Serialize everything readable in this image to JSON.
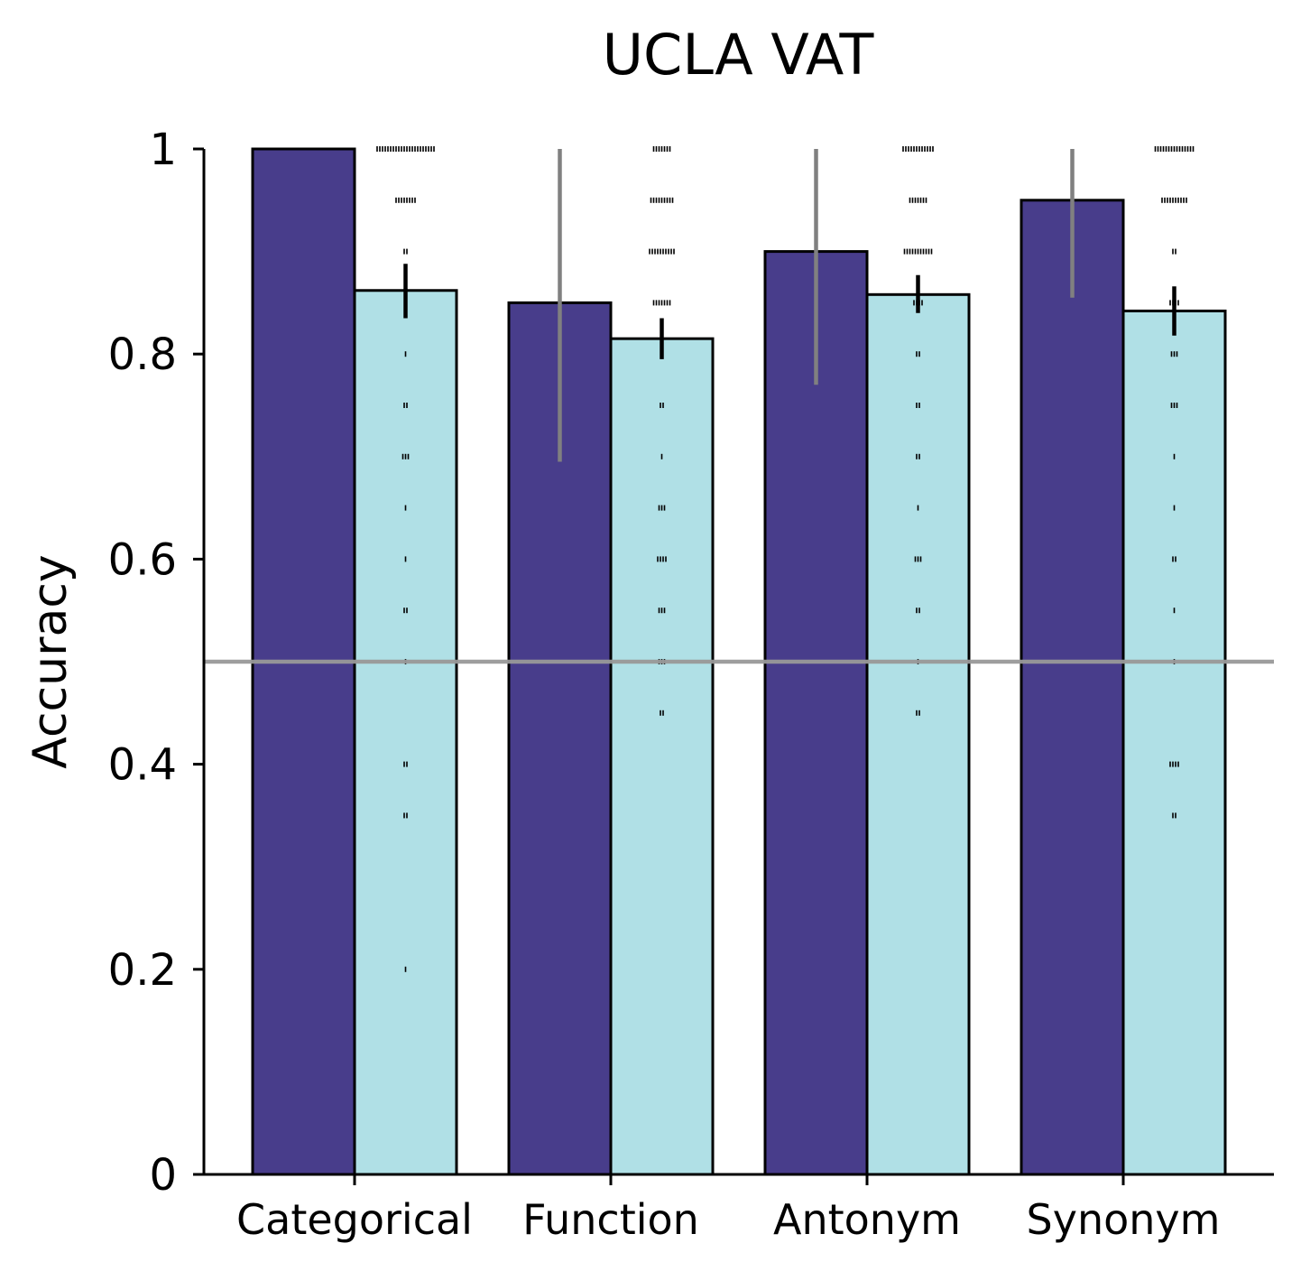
{
  "chart_data": {
    "type": "bar",
    "title": "UCLA VAT",
    "xlabel": "",
    "ylabel": "Accuracy",
    "ylim": [
      0,
      1
    ],
    "yticks": [
      0,
      0.2,
      0.4,
      0.6,
      0.8,
      1
    ],
    "ytick_labels": [
      "0",
      "0.2",
      "0.4",
      "0.6",
      "0.8",
      "1"
    ],
    "categories": [
      "Categorical",
      "Function",
      "Antonym",
      "Synonym"
    ],
    "reference_line": 0.5,
    "reference_line_color": "#999999",
    "grid": false,
    "legend": "none",
    "series": [
      {
        "color": "#483D8B",
        "values": [
          1.0,
          0.85,
          0.9,
          0.95
        ],
        "error_low": [
          1.0,
          0.695,
          0.77,
          0.855
        ],
        "error_high": [
          1.0,
          1.0,
          1.0,
          1.0
        ],
        "error_color": "#808080"
      },
      {
        "color": "#B0E0E6",
        "values": [
          0.862,
          0.815,
          0.858,
          0.842
        ],
        "error_low": [
          0.835,
          0.795,
          0.84,
          0.818
        ],
        "error_high": [
          0.888,
          0.835,
          0.877,
          0.866
        ],
        "error_color": "#000000",
        "points": [
          [
            [
              1.0,
              22
            ],
            [
              0.95,
              8
            ],
            [
              0.9,
              2
            ],
            [
              0.8,
              1
            ],
            [
              0.75,
              2
            ],
            [
              0.7,
              3
            ],
            [
              0.65,
              1
            ],
            [
              0.6,
              1
            ],
            [
              0.55,
              2
            ],
            [
              0.5,
              1
            ],
            [
              0.4,
              2
            ],
            [
              0.35,
              2
            ],
            [
              0.2,
              1
            ]
          ],
          [
            [
              1.0,
              7
            ],
            [
              0.95,
              9
            ],
            [
              0.9,
              10
            ],
            [
              0.85,
              7
            ],
            [
              0.8,
              1
            ],
            [
              0.75,
              2
            ],
            [
              0.7,
              1
            ],
            [
              0.65,
              3
            ],
            [
              0.6,
              4
            ],
            [
              0.55,
              3
            ],
            [
              0.5,
              3
            ],
            [
              0.45,
              2
            ]
          ],
          [
            [
              1.0,
              12
            ],
            [
              0.95,
              7
            ],
            [
              0.9,
              11
            ],
            [
              0.85,
              4
            ],
            [
              0.8,
              2
            ],
            [
              0.75,
              2
            ],
            [
              0.7,
              2
            ],
            [
              0.65,
              1
            ],
            [
              0.6,
              3
            ],
            [
              0.55,
              2
            ],
            [
              0.5,
              1
            ],
            [
              0.45,
              2
            ]
          ],
          [
            [
              1.0,
              15
            ],
            [
              0.95,
              10
            ],
            [
              0.9,
              2
            ],
            [
              0.85,
              4
            ],
            [
              0.8,
              3
            ],
            [
              0.75,
              3
            ],
            [
              0.7,
              1
            ],
            [
              0.65,
              1
            ],
            [
              0.6,
              2
            ],
            [
              0.55,
              1
            ],
            [
              0.5,
              1
            ],
            [
              0.4,
              4
            ],
            [
              0.35,
              2
            ]
          ]
        ]
      }
    ]
  }
}
